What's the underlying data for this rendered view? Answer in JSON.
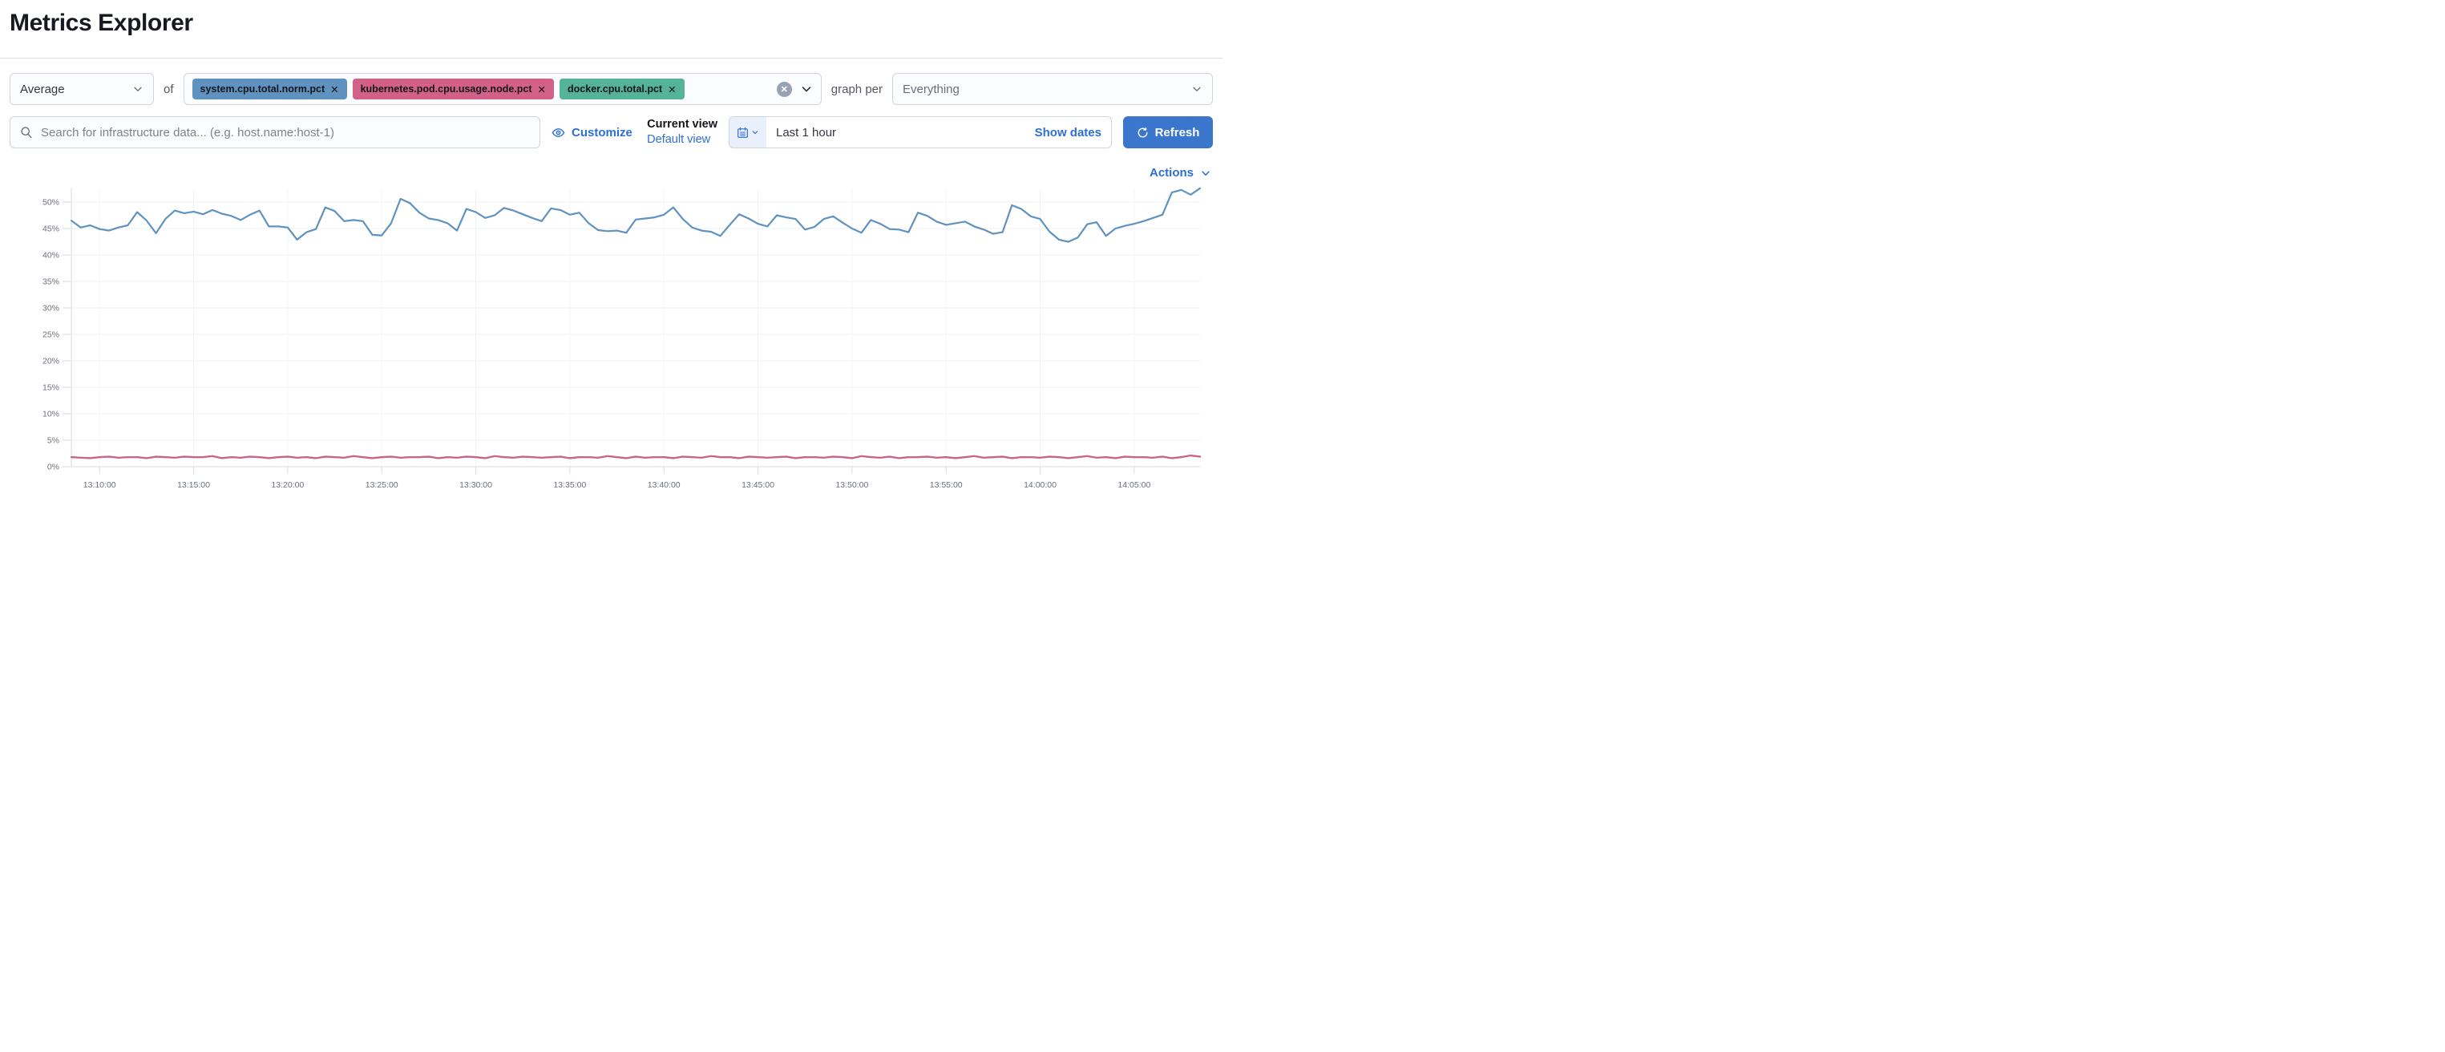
{
  "page": {
    "title": "Metrics Explorer"
  },
  "toolbar": {
    "aggregation": {
      "value": "Average"
    },
    "of_label": "of",
    "metrics": [
      {
        "label": "system.cpu.total.norm.pct",
        "remove_label": "✕",
        "color": "#6092C0"
      },
      {
        "label": "kubernetes.pod.cpu.usage.node.pct",
        "remove_label": "✕",
        "color": "#D36086"
      },
      {
        "label": "docker.cpu.total.pct",
        "remove_label": "✕",
        "color": "#54B399"
      }
    ],
    "clear_label": "✕",
    "graph_per_label": "graph per",
    "group_by": {
      "value": "Everything"
    }
  },
  "searchbar": {
    "placeholder": "Search for infrastructure data... (e.g. host.name:host-1)",
    "customize_label": "Customize",
    "current_view_label": "Current view",
    "default_view_label": "Default view",
    "time_range": "Last 1 hour",
    "show_dates_label": "Show dates",
    "refresh_label": "Refresh"
  },
  "actions_label": "Actions",
  "colors": {
    "link_blue": "#2e6fd0",
    "refresh_button": "#3a77cc",
    "series_blue": "#6092C0",
    "series_pink": "#D36086",
    "series_green": "#54B399",
    "axis_text": "#6a707d",
    "gridline": "#edeff3"
  },
  "chart_data": {
    "type": "line",
    "title": "",
    "xlabel": "",
    "ylabel": "",
    "x_start": "13:08:30",
    "x_interval_sec": 30,
    "x_ticks": [
      "13:10:00",
      "13:15:00",
      "13:20:00",
      "13:25:00",
      "13:30:00",
      "13:35:00",
      "13:40:00",
      "13:45:00",
      "13:50:00",
      "13:55:00",
      "14:00:00",
      "14:05:00"
    ],
    "y_ticks": [
      "0%",
      "5%",
      "10%",
      "15%",
      "20%",
      "25%",
      "30%",
      "35%",
      "40%",
      "45%",
      "50%"
    ],
    "ylim": [
      0,
      53.3
    ],
    "grid": true,
    "legend": false,
    "series": [
      {
        "name": "system.cpu.total.norm.pct",
        "color": "#6092C0",
        "values": [
          46.5,
          45.2,
          45.6,
          44.9,
          44.6,
          45.2,
          45.6,
          48.1,
          46.5,
          44.1,
          46.8,
          48.4,
          47.9,
          48.2,
          47.7,
          48.5,
          47.8,
          47.4,
          46.6,
          47.6,
          48.4,
          45.4,
          45.4,
          45.2,
          42.9,
          44.3,
          44.9,
          49.0,
          48.3,
          46.4,
          46.6,
          46.4,
          43.8,
          43.7,
          46.0,
          50.6,
          49.8,
          48.0,
          46.9,
          46.6,
          46.0,
          44.6,
          48.7,
          48.1,
          47.0,
          47.5,
          48.9,
          48.4,
          47.7,
          47.0,
          46.4,
          48.8,
          48.5,
          47.6,
          48.0,
          46.0,
          44.7,
          44.5,
          44.6,
          44.2,
          46.7,
          46.9,
          47.1,
          47.6,
          49.0,
          46.8,
          45.2,
          44.6,
          44.4,
          43.6,
          45.7,
          47.7,
          46.9,
          45.9,
          45.4,
          47.5,
          47.1,
          46.8,
          44.8,
          45.3,
          46.8,
          47.3,
          46.1,
          45.0,
          44.2,
          46.6,
          45.9,
          44.9,
          44.8,
          44.3,
          48.0,
          47.4,
          46.3,
          45.7,
          46.0,
          46.3,
          45.4,
          44.8,
          44.0,
          44.3,
          49.4,
          48.7,
          47.3,
          46.8,
          44.4,
          42.9,
          42.5,
          43.3,
          45.8,
          46.2,
          43.6,
          45.0,
          45.5,
          45.9,
          46.4,
          47.0,
          47.6,
          51.8,
          52.3,
          51.4,
          52.6
        ]
      },
      {
        "name": "kubernetes.pod.cpu.usage.node.pct",
        "color": "#D36086",
        "values": [
          1.8,
          1.7,
          1.6,
          1.8,
          1.9,
          1.7,
          1.8,
          1.8,
          1.6,
          1.9,
          1.8,
          1.7,
          1.9,
          1.8,
          1.8,
          2.0,
          1.6,
          1.8,
          1.7,
          1.9,
          1.8,
          1.6,
          1.8,
          1.9,
          1.7,
          1.8,
          1.6,
          1.9,
          1.8,
          1.7,
          2.0,
          1.8,
          1.6,
          1.8,
          1.9,
          1.7,
          1.8,
          1.8,
          1.9,
          1.6,
          1.8,
          1.7,
          1.9,
          1.8,
          1.6,
          2.0,
          1.8,
          1.7,
          1.9,
          1.8,
          1.7,
          1.8,
          1.9,
          1.6,
          1.8,
          1.8,
          1.7,
          2.0,
          1.8,
          1.6,
          1.9,
          1.7,
          1.8,
          1.8,
          1.6,
          1.9,
          1.8,
          1.7,
          2.0,
          1.8,
          1.8,
          1.6,
          1.9,
          1.8,
          1.7,
          1.8,
          1.9,
          1.6,
          1.8,
          1.8,
          1.7,
          1.9,
          1.8,
          1.6,
          2.0,
          1.8,
          1.7,
          1.9,
          1.6,
          1.8,
          1.8,
          1.9,
          1.7,
          1.8,
          1.6,
          1.8,
          2.0,
          1.7,
          1.8,
          1.9,
          1.6,
          1.8,
          1.8,
          1.7,
          1.9,
          1.8,
          1.6,
          1.8,
          2.0,
          1.7,
          1.8,
          1.6,
          1.9,
          1.8,
          1.8,
          1.7,
          1.9,
          1.6,
          1.8,
          2.1,
          1.9
        ]
      },
      {
        "name": "docker.cpu.total.pct",
        "color": "#54B399",
        "values": [
          1.8,
          1.7,
          1.6,
          1.8,
          1.9,
          1.7,
          1.8,
          1.8,
          1.6,
          1.9,
          1.8,
          1.7,
          1.9,
          1.8,
          1.8,
          2.0,
          1.6,
          1.8,
          1.7,
          1.9,
          1.8,
          1.6,
          1.8,
          1.9,
          1.7,
          1.8,
          1.6,
          1.9,
          1.8,
          1.7,
          2.0,
          1.8,
          1.6,
          1.8,
          1.9,
          1.7,
          1.8,
          1.8,
          1.9,
          1.6,
          1.8,
          1.7,
          1.9,
          1.8,
          1.6,
          2.0,
          1.8,
          1.7,
          1.9,
          1.8,
          1.7,
          1.8,
          1.9,
          1.6,
          1.8,
          1.8,
          1.7,
          2.0,
          1.8,
          1.6,
          1.9,
          1.7,
          1.8,
          1.8,
          1.6,
          1.9,
          1.8,
          1.7,
          2.0,
          1.8,
          1.8,
          1.6,
          1.9,
          1.8,
          1.7,
          1.8,
          1.9,
          1.6,
          1.8,
          1.8,
          1.7,
          1.9,
          1.8,
          1.6,
          2.0,
          1.8,
          1.7,
          1.9,
          1.6,
          1.8,
          1.8,
          1.9,
          1.7,
          1.8,
          1.6,
          1.8,
          2.0,
          1.7,
          1.8,
          1.9,
          1.6,
          1.8,
          1.8,
          1.7,
          1.9,
          1.8,
          1.6,
          1.8,
          2.0,
          1.7,
          1.8,
          1.6,
          1.9,
          1.8,
          1.8,
          1.7,
          1.9,
          1.6,
          1.8,
          2.1,
          1.9
        ]
      }
    ]
  }
}
